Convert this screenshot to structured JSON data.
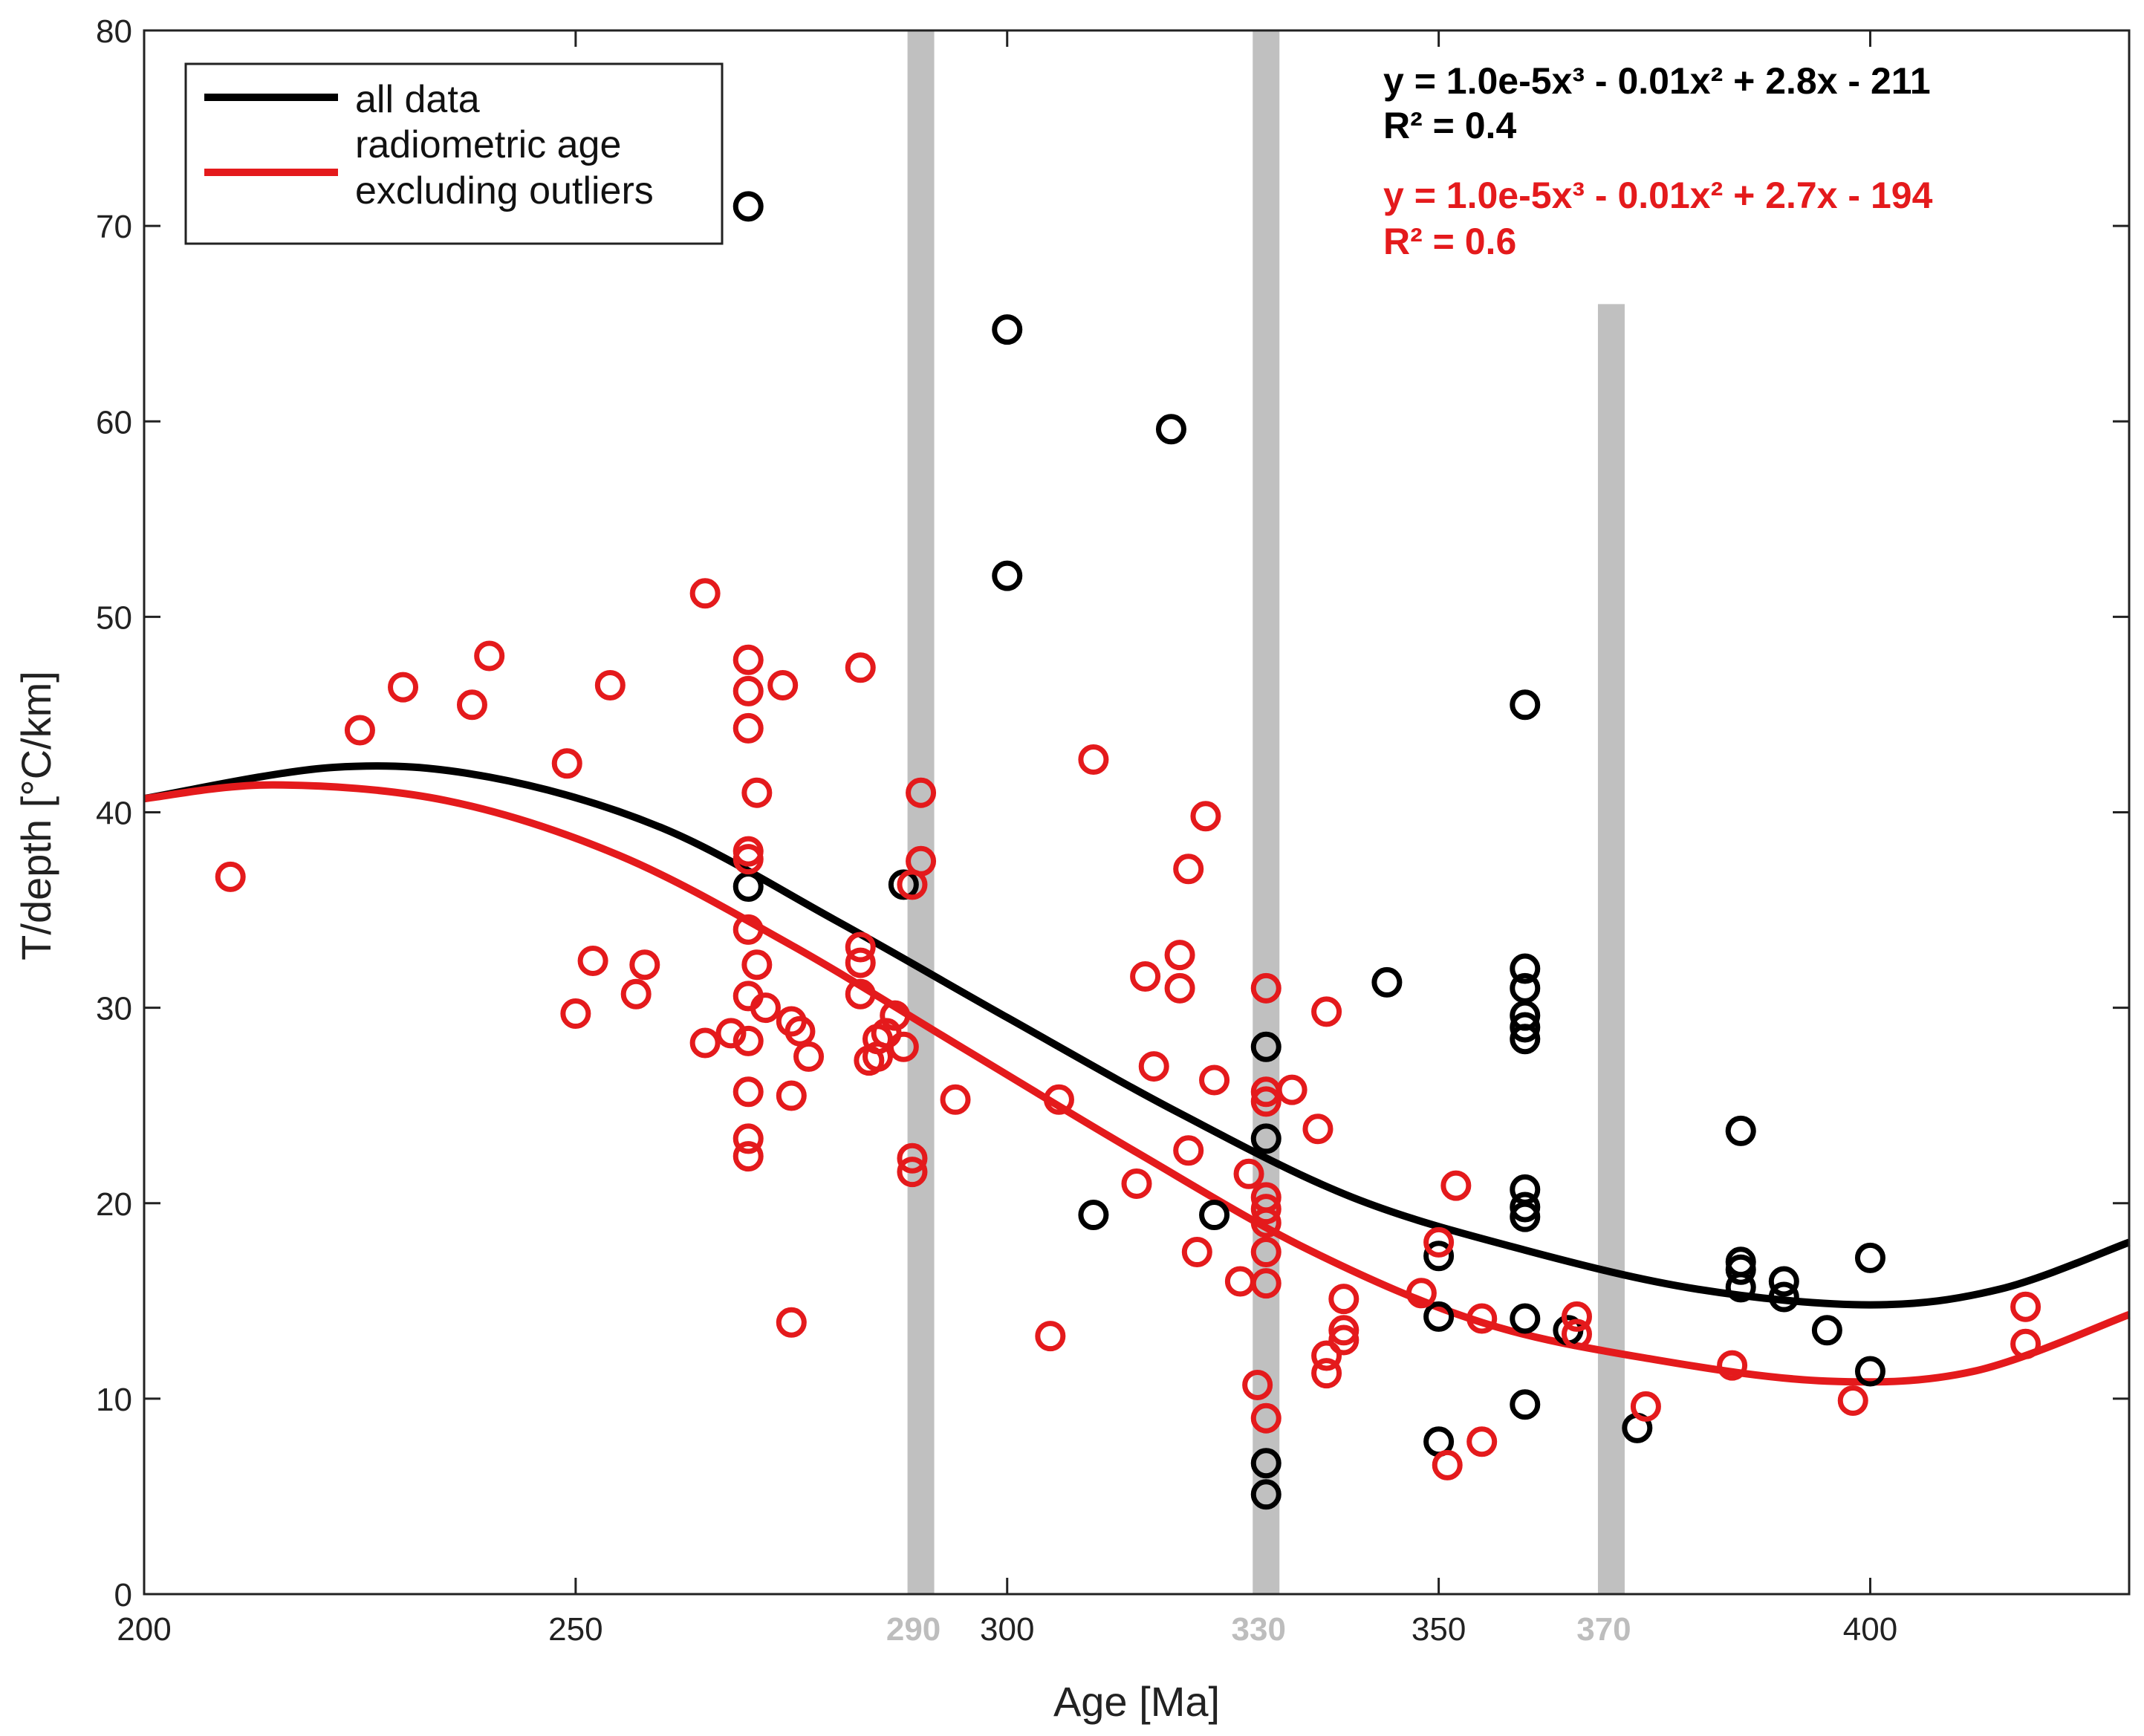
{
  "chart_data": {
    "type": "scatter",
    "xlabel": "Age [Ma]",
    "ylabel": "T/depth [°C/km]",
    "xlim": [
      200,
      430
    ],
    "ylim": [
      0,
      80
    ],
    "xticks": [
      "200",
      "250",
      "300",
      "350",
      "400"
    ],
    "yticks": [
      "0",
      "10",
      "20",
      "30",
      "40",
      "50",
      "60",
      "70",
      "80"
    ],
    "vertical_bands": [
      {
        "x": 290,
        "label": "290",
        "ymax": 80
      },
      {
        "x": 330,
        "label": "330",
        "ymax": 80
      },
      {
        "x": 370,
        "label": "370",
        "ymax": 66
      }
    ],
    "legend": {
      "position": "top-left",
      "entries": [
        {
          "label": "all data",
          "color": "#000000"
        },
        {
          "label": "radiometric age",
          "label2": "excluding outliers",
          "color": "#e41a1c"
        }
      ]
    },
    "equations": {
      "black_fit": "y = 1.0e-5x³ - 0.01x² + 2.8x - 211",
      "black_r2": "R² = 0.4",
      "red_fit": "y = 1.0e-5x³ - 0.01x² + 2.7x - 194",
      "red_r2": "R²  = 0.6"
    },
    "series": [
      {
        "name": "all data",
        "color": "#000000",
        "points": [
          [
            270,
            71.0
          ],
          [
            270,
            36.2
          ],
          [
            288,
            36.3
          ],
          [
            300,
            64.7
          ],
          [
            300,
            52.1
          ],
          [
            319,
            59.6
          ],
          [
            310,
            19.4
          ],
          [
            324,
            19.4
          ],
          [
            330,
            28.0
          ],
          [
            330,
            23.3
          ],
          [
            330,
            6.7
          ],
          [
            330,
            5.1
          ],
          [
            344,
            31.3
          ],
          [
            350,
            17.3
          ],
          [
            350,
            14.2
          ],
          [
            350,
            7.8
          ],
          [
            360,
            45.5
          ],
          [
            360,
            32.0
          ],
          [
            360,
            31.0
          ],
          [
            360,
            29.6
          ],
          [
            360,
            29.0
          ],
          [
            360,
            28.4
          ],
          [
            360,
            20.7
          ],
          [
            360,
            19.8
          ],
          [
            360,
            19.3
          ],
          [
            360,
            14.1
          ],
          [
            360,
            9.7
          ],
          [
            365,
            13.5
          ],
          [
            373,
            8.5
          ],
          [
            385,
            23.7
          ],
          [
            385,
            17.0
          ],
          [
            385,
            16.6
          ],
          [
            385,
            15.7
          ],
          [
            390,
            16.0
          ],
          [
            390,
            15.2
          ],
          [
            395,
            13.5
          ],
          [
            400,
            17.2
          ],
          [
            400,
            11.4
          ]
        ]
      },
      {
        "name": "radiometric age excluding outliers",
        "color": "#e41a1c",
        "points": [
          [
            210,
            36.7
          ],
          [
            225,
            44.2
          ],
          [
            230,
            46.4
          ],
          [
            238,
            45.5
          ],
          [
            240,
            48.0
          ],
          [
            249,
            42.5
          ],
          [
            250,
            29.7
          ],
          [
            252,
            32.4
          ],
          [
            254,
            46.5
          ],
          [
            257,
            30.7
          ],
          [
            258,
            32.2
          ],
          [
            265,
            51.2
          ],
          [
            265,
            28.2
          ],
          [
            268,
            28.7
          ],
          [
            270,
            47.8
          ],
          [
            270,
            46.2
          ],
          [
            270,
            44.3
          ],
          [
            270,
            38.0
          ],
          [
            270,
            37.6
          ],
          [
            270,
            34.0
          ],
          [
            270,
            30.6
          ],
          [
            270,
            28.3
          ],
          [
            270,
            25.7
          ],
          [
            270,
            23.3
          ],
          [
            270,
            22.4
          ],
          [
            271,
            32.2
          ],
          [
            271,
            41.0
          ],
          [
            272,
            30.0
          ],
          [
            274,
            46.5
          ],
          [
            275,
            29.3
          ],
          [
            275,
            25.5
          ],
          [
            275,
            13.9
          ],
          [
            276,
            28.8
          ],
          [
            277,
            27.5
          ],
          [
            283,
            47.4
          ],
          [
            283,
            33.1
          ],
          [
            283,
            32.3
          ],
          [
            283,
            30.7
          ],
          [
            284,
            27.3
          ],
          [
            285,
            28.4
          ],
          [
            285,
            27.5
          ],
          [
            286,
            28.7
          ],
          [
            287,
            29.6
          ],
          [
            288,
            28.0
          ],
          [
            289,
            22.3
          ],
          [
            289,
            21.6
          ],
          [
            289,
            36.3
          ],
          [
            290,
            41.0
          ],
          [
            290,
            37.5
          ],
          [
            294,
            25.3
          ],
          [
            305,
            13.2
          ],
          [
            306,
            25.3
          ],
          [
            310,
            42.7
          ],
          [
            315,
            21.0
          ],
          [
            316,
            31.6
          ],
          [
            317,
            27.0
          ],
          [
            320,
            32.7
          ],
          [
            320,
            31.0
          ],
          [
            321,
            37.1
          ],
          [
            321,
            22.7
          ],
          [
            322,
            17.5
          ],
          [
            323,
            39.8
          ],
          [
            324,
            26.3
          ],
          [
            327,
            16.0
          ],
          [
            328,
            21.5
          ],
          [
            329,
            10.7
          ],
          [
            330,
            31.0
          ],
          [
            330,
            25.7
          ],
          [
            330,
            25.2
          ],
          [
            330,
            20.3
          ],
          [
            330,
            19.7
          ],
          [
            330,
            19.0
          ],
          [
            330,
            17.5
          ],
          [
            330,
            15.9
          ],
          [
            330,
            9.0
          ],
          [
            333,
            25.8
          ],
          [
            336,
            23.8
          ],
          [
            337,
            29.8
          ],
          [
            337,
            12.2
          ],
          [
            337,
            11.3
          ],
          [
            339,
            15.1
          ],
          [
            339,
            13.5
          ],
          [
            339,
            13.0
          ],
          [
            348,
            15.4
          ],
          [
            350,
            18.0
          ],
          [
            351,
            6.6
          ],
          [
            352,
            20.9
          ],
          [
            355,
            14.1
          ],
          [
            355,
            7.8
          ],
          [
            366,
            14.2
          ],
          [
            366,
            13.3
          ],
          [
            374,
            9.6
          ],
          [
            384,
            11.7
          ],
          [
            398,
            9.9
          ],
          [
            418,
            14.7
          ],
          [
            418,
            12.8
          ]
        ]
      }
    ],
    "fits": [
      {
        "name": "all data",
        "color": "#000000",
        "coeffs": [
          1e-05,
          -0.01,
          2.8,
          -211
        ]
      },
      {
        "name": "radiometric age excluding outliers",
        "color": "#e41a1c",
        "coeffs": [
          1e-05,
          -0.01,
          2.7,
          -194
        ]
      }
    ]
  }
}
